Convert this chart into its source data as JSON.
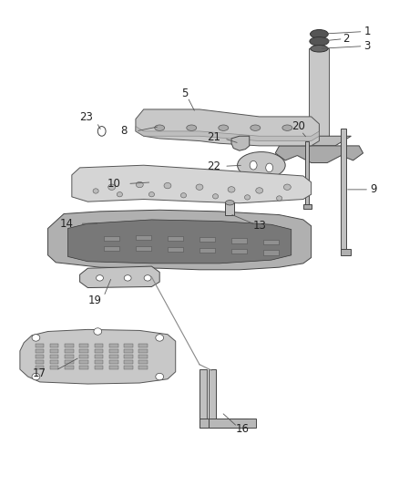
{
  "background_color": "#ffffff",
  "fig_width": 4.38,
  "fig_height": 5.33,
  "dpi": 100,
  "line_color": "#555555",
  "label_color": "#222222",
  "label_fontsize": 8.5
}
